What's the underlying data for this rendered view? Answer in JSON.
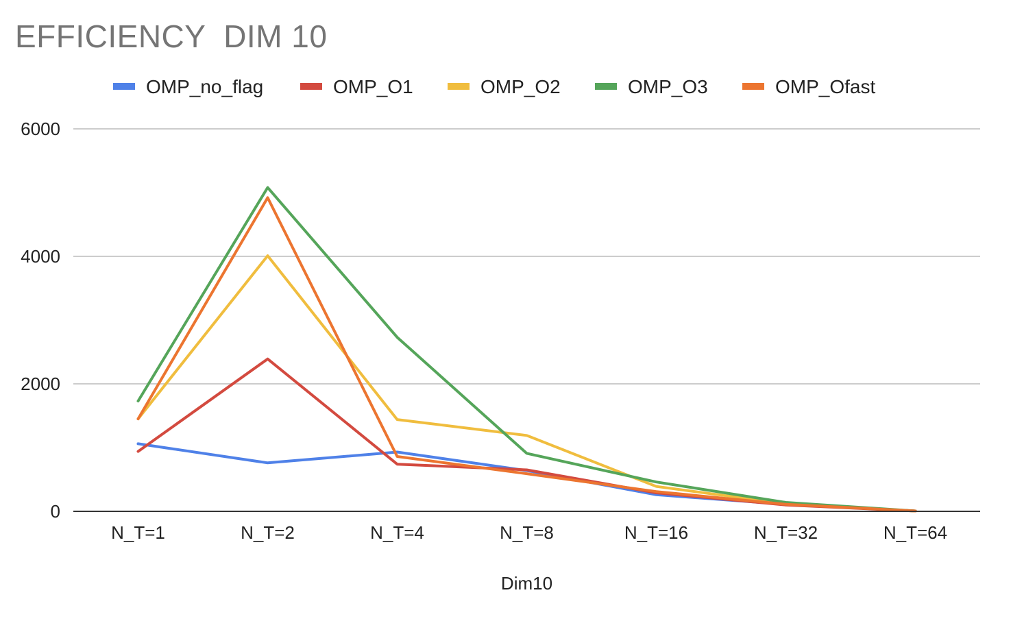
{
  "chart_data": {
    "type": "line",
    "title": "EFFICIENCY  DIM 10",
    "xlabel": "Dim10",
    "ylabel": "",
    "categories": [
      "N_T=1",
      "N_T=2",
      "N_T=4",
      "N_T=8",
      "N_T=16",
      "N_T=32",
      "N_T=64"
    ],
    "ylim": [
      0,
      6000
    ],
    "yticks": [
      "0",
      "2000",
      "4000",
      "6000"
    ],
    "grid": true,
    "legend_position": "top",
    "series": [
      {
        "name": "OMP_no_flag",
        "color": "#4f81e8",
        "values": [
          1060,
          760,
          930,
          640,
          260,
          110,
          5
        ]
      },
      {
        "name": "OMP_O1",
        "color": "#d34a3f",
        "values": [
          940,
          2390,
          740,
          650,
          290,
          100,
          5
        ]
      },
      {
        "name": "OMP_O2",
        "color": "#f0bd3e",
        "values": [
          1450,
          4010,
          1440,
          1190,
          390,
          120,
          5
        ]
      },
      {
        "name": "OMP_O3",
        "color": "#55a55a",
        "values": [
          1730,
          5080,
          2730,
          910,
          460,
          140,
          5
        ]
      },
      {
        "name": "OMP_Ofast",
        "color": "#ec7530",
        "values": [
          1450,
          4920,
          860,
          590,
          310,
          110,
          5
        ]
      }
    ]
  }
}
